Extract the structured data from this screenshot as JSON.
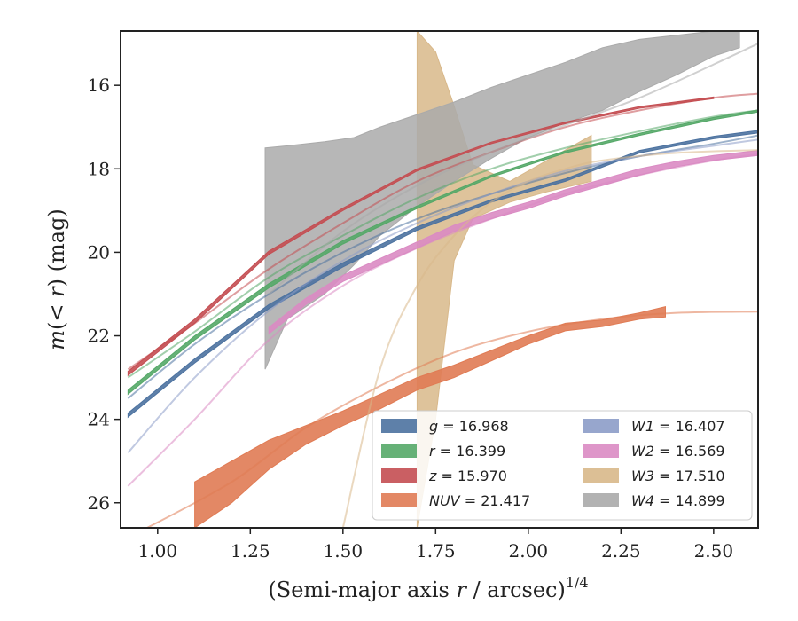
{
  "chart_data": {
    "type": "line",
    "xlabel": "(Semi-major axis r / arcsec)",
    "xlabel_parts": [
      "(Semi-major axis ",
      "r",
      " / arcsec)",
      "1/4"
    ],
    "ylabel": "m(<r) (mag)",
    "ylabel_parts": [
      "m",
      "(< ",
      "r",
      ") (mag)"
    ],
    "xlim": [
      0.9,
      2.62
    ],
    "ylim": [
      26.6,
      14.7
    ],
    "y_inverted": true,
    "x_ticks": [
      1.0,
      1.25,
      1.5,
      1.75,
      2.0,
      2.25,
      2.5
    ],
    "x_tick_labels": [
      "1.00",
      "1.25",
      "1.50",
      "1.75",
      "2.00",
      "2.25",
      "2.50"
    ],
    "y_ticks": [
      16,
      18,
      20,
      22,
      24,
      26
    ],
    "y_tick_labels": [
      "16",
      "18",
      "20",
      "22",
      "24",
      "26"
    ],
    "grid": false,
    "legend_position": "lower-right",
    "series": [
      {
        "key": "g",
        "legend_var": "g",
        "legend_value": "= 16.968",
        "color": "#4c72a0",
        "model": [
          [
            0.92,
            23.5
          ],
          [
            1.1,
            22.2
          ],
          [
            1.3,
            21.0
          ],
          [
            1.5,
            20.0
          ],
          [
            1.7,
            19.2
          ],
          [
            1.9,
            18.6
          ],
          [
            2.1,
            18.1
          ],
          [
            2.3,
            17.7
          ],
          [
            2.5,
            17.4
          ],
          [
            2.62,
            17.2
          ]
        ],
        "band": [
          [
            0.92,
            23.95,
            23.85
          ],
          [
            1.1,
            22.65,
            22.55
          ],
          [
            1.3,
            21.35,
            21.25
          ],
          [
            1.5,
            20.35,
            20.25
          ],
          [
            1.7,
            19.47,
            19.39
          ],
          [
            1.9,
            18.8,
            18.74
          ],
          [
            2.1,
            18.3,
            18.24
          ],
          [
            2.3,
            17.62,
            17.56
          ],
          [
            2.5,
            17.28,
            17.22
          ],
          [
            2.62,
            17.14,
            17.08
          ]
        ]
      },
      {
        "key": "r",
        "legend_var": "r",
        "legend_value": "= 16.399",
        "color": "#55a868",
        "model": [
          [
            0.92,
            23.0
          ],
          [
            1.1,
            21.9
          ],
          [
            1.3,
            20.6
          ],
          [
            1.5,
            19.6
          ],
          [
            1.7,
            18.7
          ],
          [
            1.9,
            18.0
          ],
          [
            2.1,
            17.5
          ],
          [
            2.3,
            17.1
          ],
          [
            2.5,
            16.75
          ],
          [
            2.62,
            16.6
          ]
        ],
        "band": [
          [
            0.92,
            23.4,
            23.3
          ],
          [
            1.1,
            22.1,
            22.0
          ],
          [
            1.3,
            20.85,
            20.75
          ],
          [
            1.5,
            19.8,
            19.72
          ],
          [
            1.7,
            18.95,
            18.89
          ],
          [
            1.9,
            18.2,
            18.15
          ],
          [
            2.1,
            17.62,
            17.57
          ],
          [
            2.3,
            17.2,
            17.15
          ],
          [
            2.5,
            16.82,
            16.77
          ],
          [
            2.62,
            16.64,
            16.59
          ]
        ]
      },
      {
        "key": "z",
        "legend_var": "z",
        "legend_value": "= 15.970",
        "color": "#c44e52",
        "model": [
          [
            0.92,
            22.8
          ],
          [
            1.1,
            21.7
          ],
          [
            1.3,
            20.4
          ],
          [
            1.5,
            19.3
          ],
          [
            1.7,
            18.3
          ],
          [
            1.9,
            17.6
          ],
          [
            2.1,
            17.0
          ],
          [
            2.3,
            16.6
          ],
          [
            2.5,
            16.3
          ],
          [
            2.62,
            16.2
          ]
        ],
        "band": [
          [
            0.92,
            22.95,
            22.85
          ],
          [
            1.1,
            21.7,
            21.6
          ],
          [
            1.3,
            20.05,
            19.97
          ],
          [
            1.5,
            19.0,
            18.94
          ],
          [
            1.7,
            18.05,
            18.0
          ],
          [
            1.9,
            17.4,
            17.36
          ],
          [
            2.1,
            16.92,
            16.88
          ],
          [
            2.3,
            16.55,
            16.51
          ],
          [
            2.5,
            16.32,
            16.28
          ]
        ]
      },
      {
        "key": "NUV",
        "legend_var": "NUV",
        "legend_value": "= 21.417",
        "color": "#e07b54",
        "model": [
          [
            0.95,
            26.7
          ],
          [
            1.2,
            25.5
          ],
          [
            1.4,
            24.2
          ],
          [
            1.6,
            23.2
          ],
          [
            1.8,
            22.4
          ],
          [
            2.0,
            21.9
          ],
          [
            2.2,
            21.6
          ],
          [
            2.4,
            21.45
          ],
          [
            2.62,
            21.42
          ]
        ],
        "band": [
          [
            1.1,
            25.5,
            26.6
          ],
          [
            1.2,
            25.0,
            26.0
          ],
          [
            1.3,
            24.5,
            25.2
          ],
          [
            1.4,
            24.15,
            24.6
          ],
          [
            1.5,
            23.8,
            24.15
          ],
          [
            1.6,
            23.4,
            23.75
          ],
          [
            1.7,
            23.0,
            23.3
          ],
          [
            1.8,
            22.7,
            23.0
          ],
          [
            1.9,
            22.35,
            22.6
          ],
          [
            2.0,
            22.0,
            22.2
          ],
          [
            2.1,
            21.7,
            21.88
          ],
          [
            2.2,
            21.62,
            21.78
          ],
          [
            2.3,
            21.45,
            21.6
          ],
          [
            2.37,
            21.3,
            21.55
          ]
        ]
      },
      {
        "key": "W1",
        "legend_var": "W1",
        "legend_value": "= 16.407",
        "color": "#8c9cc8",
        "model": [
          [
            0.92,
            24.8
          ],
          [
            1.1,
            23.0
          ],
          [
            1.3,
            21.4
          ],
          [
            1.5,
            20.2
          ],
          [
            1.7,
            19.3
          ],
          [
            1.9,
            18.6
          ],
          [
            2.1,
            18.05
          ],
          [
            2.3,
            17.7
          ],
          [
            2.5,
            17.45
          ],
          [
            2.62,
            17.3
          ]
        ],
        "band": []
      },
      {
        "key": "W2",
        "legend_var": "W2",
        "legend_value": "= 16.569",
        "color": "#da8bc3",
        "model": [
          [
            0.92,
            25.6
          ],
          [
            1.1,
            24.0
          ],
          [
            1.3,
            22.1
          ],
          [
            1.5,
            20.8
          ],
          [
            1.7,
            19.9
          ],
          [
            1.9,
            19.2
          ],
          [
            2.1,
            18.6
          ],
          [
            2.3,
            18.15
          ],
          [
            2.5,
            17.8
          ],
          [
            2.62,
            17.65
          ]
        ],
        "band": [
          [
            1.3,
            21.95,
            21.8
          ],
          [
            1.4,
            21.25,
            21.1
          ],
          [
            1.5,
            20.7,
            20.55
          ],
          [
            1.6,
            20.3,
            20.15
          ],
          [
            1.7,
            19.9,
            19.75
          ],
          [
            1.8,
            19.5,
            19.35
          ],
          [
            1.9,
            19.2,
            19.05
          ],
          [
            2.0,
            18.95,
            18.8
          ],
          [
            2.1,
            18.65,
            18.5
          ],
          [
            2.2,
            18.4,
            18.25
          ],
          [
            2.3,
            18.15,
            18.0
          ],
          [
            2.4,
            17.95,
            17.82
          ],
          [
            2.5,
            17.8,
            17.68
          ],
          [
            2.62,
            17.68,
            17.56
          ]
        ]
      },
      {
        "key": "W3",
        "legend_var": "W3",
        "legend_value": "= 17.510",
        "color": "#d8b88a",
        "model": [
          [
            1.5,
            26.6
          ],
          [
            1.6,
            22.8
          ],
          [
            1.7,
            20.8
          ],
          [
            1.8,
            19.6
          ],
          [
            1.9,
            18.8
          ],
          [
            2.0,
            18.3
          ],
          [
            2.1,
            18.0
          ],
          [
            2.2,
            17.8
          ],
          [
            2.4,
            17.62
          ],
          [
            2.62,
            17.55
          ]
        ],
        "band": [
          [
            1.7,
            14.7,
            26.6
          ],
          [
            1.75,
            15.2,
            24.0
          ],
          [
            1.8,
            16.5,
            20.2
          ],
          [
            1.85,
            17.9,
            19.2
          ],
          [
            1.95,
            18.3,
            18.8
          ],
          [
            2.05,
            17.8,
            18.55
          ],
          [
            2.17,
            17.2,
            18.3
          ]
        ]
      },
      {
        "key": "W4",
        "legend_var": "W4",
        "legend_value": "= 14.899",
        "color": "#aaaaaa",
        "model": [
          [
            1.3,
            21.0
          ],
          [
            1.5,
            19.5
          ],
          [
            1.7,
            18.4
          ],
          [
            1.9,
            17.6
          ],
          [
            2.1,
            16.95
          ],
          [
            2.3,
            16.3
          ],
          [
            2.5,
            15.5
          ],
          [
            2.62,
            15.0
          ]
        ],
        "band": [
          [
            1.29,
            17.5,
            22.8
          ],
          [
            1.35,
            17.45,
            21.6
          ],
          [
            1.45,
            17.35,
            21.0
          ],
          [
            1.53,
            17.25,
            20.3
          ],
          [
            1.6,
            17.0,
            19.6
          ],
          [
            1.7,
            16.7,
            18.9
          ],
          [
            1.8,
            16.4,
            18.3
          ],
          [
            1.9,
            16.05,
            17.75
          ],
          [
            2.0,
            15.75,
            17.25
          ],
          [
            2.1,
            15.45,
            16.9
          ],
          [
            2.2,
            15.1,
            16.6
          ],
          [
            2.3,
            14.9,
            16.15
          ],
          [
            2.4,
            14.8,
            15.75
          ],
          [
            2.5,
            14.7,
            15.3
          ],
          [
            2.57,
            14.7,
            15.1
          ]
        ]
      }
    ]
  }
}
